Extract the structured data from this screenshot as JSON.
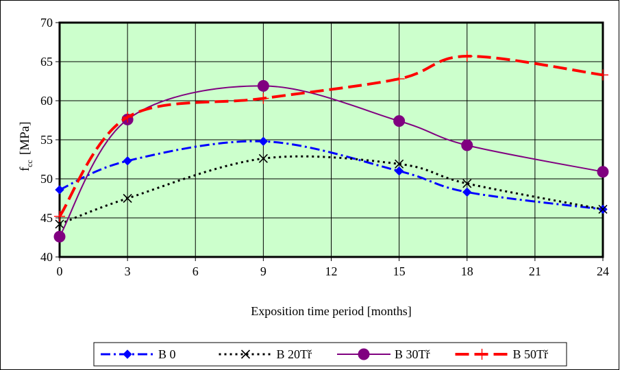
{
  "chart_data": {
    "type": "line",
    "title": "",
    "xlabel": "Exposition time period [months]",
    "ylabel_main": "f",
    "ylabel_sub": "cc",
    "ylabel_unit": "[MPa]",
    "xlim": [
      0,
      24
    ],
    "ylim": [
      40,
      70
    ],
    "x_ticks": [
      "0",
      "3",
      "6",
      "9",
      "12",
      "15",
      "18",
      "21",
      "24"
    ],
    "y_ticks": [
      "40",
      "45",
      "50",
      "55",
      "60",
      "65",
      "70"
    ],
    "grid": true,
    "legend_position": "bottom",
    "plot_background": "#ccffcc",
    "x": [
      0,
      3,
      9,
      15,
      18,
      24
    ],
    "series": [
      {
        "name": "B 0",
        "values": [
          48.6,
          52.3,
          54.8,
          51.0,
          48.3,
          46.1
        ],
        "color": "#0000ff",
        "marker": "diamond",
        "dash": "dash-dot"
      },
      {
        "name": "B 20Tř",
        "values": [
          44.2,
          47.5,
          52.6,
          51.9,
          49.4,
          46.1
        ],
        "color": "#000000",
        "marker": "x",
        "dash": "dotted"
      },
      {
        "name": "B 30Tř",
        "values": [
          42.6,
          57.6,
          61.9,
          57.4,
          54.3,
          50.9
        ],
        "color": "#800080",
        "marker": "circle",
        "dash": "solid"
      },
      {
        "name": "B 50Tř",
        "values": [
          45.2,
          57.9,
          60.3,
          62.8,
          65.7,
          63.3
        ],
        "color": "#ff0000",
        "marker": "plus",
        "dash": "long-dash"
      }
    ]
  }
}
